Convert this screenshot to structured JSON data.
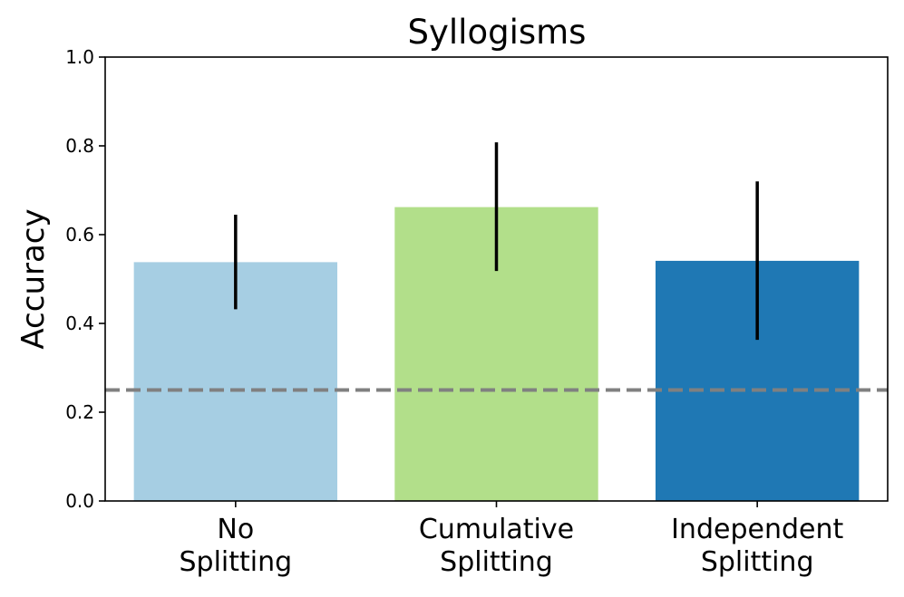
{
  "chart_data": {
    "type": "bar",
    "title": "Syllogisms",
    "xlabel": "",
    "ylabel": "Accuracy",
    "ylim": [
      0.0,
      1.0
    ],
    "yticks": [
      "0.0",
      "0.2",
      "0.4",
      "0.6",
      "0.8",
      "1.0"
    ],
    "grid": false,
    "categories": [
      [
        "No",
        "Splitting"
      ],
      [
        "Cumulative",
        "Splitting"
      ],
      [
        "Independent",
        "Splitting"
      ]
    ],
    "values": [
      0.538,
      0.662,
      0.541
    ],
    "error_bars": [
      [
        0.432,
        0.645
      ],
      [
        0.518,
        0.808
      ],
      [
        0.363,
        0.72
      ]
    ],
    "colors": [
      "#a6cee3",
      "#b2df8a",
      "#1f78b4"
    ],
    "reference_line": {
      "value": 0.25,
      "color": "#808080",
      "style": "dashed"
    }
  }
}
